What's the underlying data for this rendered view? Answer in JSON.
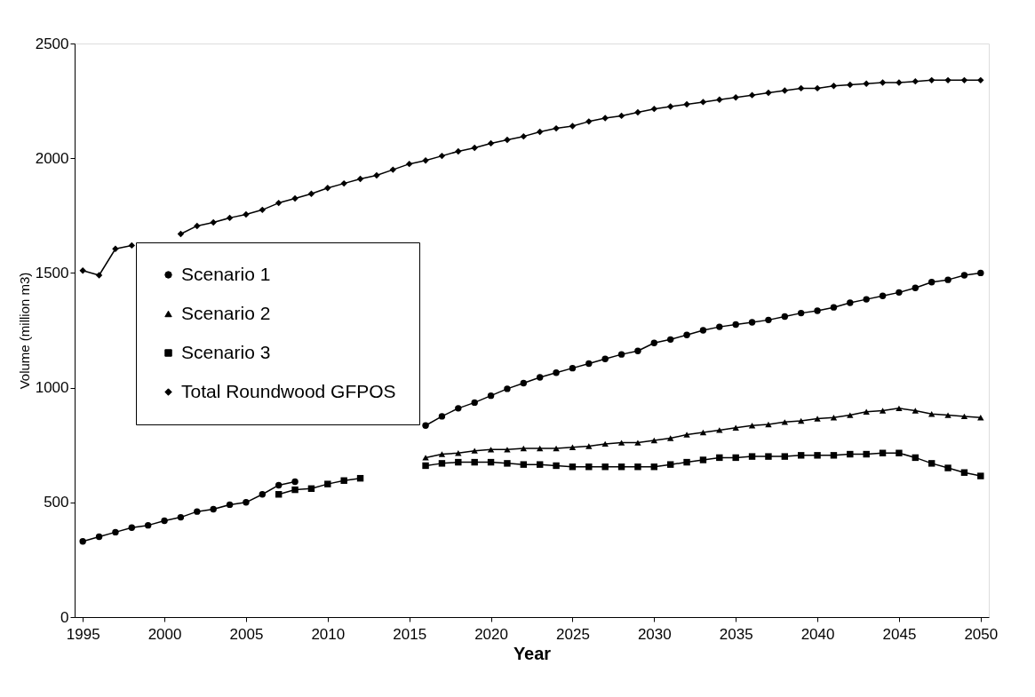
{
  "chart_data": {
    "type": "line",
    "xlabel": "Year",
    "ylabel": "Volume (million m3)",
    "x": [
      1995,
      1996,
      1997,
      1998,
      1999,
      2000,
      2001,
      2002,
      2003,
      2004,
      2005,
      2006,
      2007,
      2008,
      2009,
      2010,
      2011,
      2012,
      2013,
      2014,
      2015,
      2016,
      2017,
      2018,
      2019,
      2020,
      2021,
      2022,
      2023,
      2024,
      2025,
      2026,
      2027,
      2028,
      2029,
      2030,
      2031,
      2032,
      2033,
      2034,
      2035,
      2036,
      2037,
      2038,
      2039,
      2040,
      2041,
      2042,
      2043,
      2044,
      2045,
      2046,
      2047,
      2048,
      2049,
      2050
    ],
    "series": [
      {
        "name": "Scenario 1",
        "color": "#000000",
        "marker": "circle",
        "values": [
          330,
          350,
          370,
          390,
          400,
          420,
          435,
          460,
          470,
          490,
          500,
          535,
          575,
          590,
          null,
          null,
          null,
          null,
          null,
          null,
          null,
          835,
          875,
          910,
          935,
          965,
          995,
          1020,
          1045,
          1065,
          1085,
          1105,
          1125,
          1145,
          1160,
          1195,
          1210,
          1230,
          1250,
          1265,
          1275,
          1285,
          1295,
          1310,
          1325,
          1335,
          1350,
          1370,
          1385,
          1400,
          1415,
          1435,
          1460,
          1470,
          1490,
          1500
        ]
      },
      {
        "name": "Scenario 2",
        "color": "#000000",
        "marker": "triangle",
        "values": [
          null,
          null,
          null,
          null,
          null,
          null,
          null,
          null,
          null,
          null,
          null,
          null,
          null,
          null,
          null,
          null,
          null,
          null,
          null,
          null,
          null,
          695,
          710,
          715,
          725,
          730,
          730,
          735,
          735,
          735,
          740,
          745,
          755,
          760,
          760,
          770,
          780,
          795,
          805,
          815,
          825,
          835,
          840,
          850,
          855,
          865,
          870,
          880,
          895,
          900,
          910,
          900,
          885,
          880,
          875,
          870
        ]
      },
      {
        "name": "Scenario 3",
        "color": "#000000",
        "marker": "square",
        "values": [
          null,
          null,
          null,
          null,
          null,
          null,
          null,
          null,
          null,
          null,
          null,
          null,
          535,
          555,
          560,
          580,
          595,
          605,
          null,
          null,
          null,
          660,
          670,
          675,
          675,
          675,
          670,
          665,
          665,
          660,
          655,
          655,
          655,
          655,
          655,
          655,
          665,
          675,
          685,
          695,
          695,
          700,
          700,
          700,
          705,
          705,
          705,
          710,
          710,
          715,
          715,
          695,
          670,
          650,
          630,
          615
        ]
      },
      {
        "name": "Total Roundwood GFPOS",
        "color": "#000000",
        "marker": "diamond",
        "values": [
          1510,
          1490,
          1605,
          1620,
          null,
          null,
          1670,
          1705,
          1720,
          1740,
          1755,
          1775,
          1805,
          1825,
          1845,
          1870,
          1890,
          1910,
          1925,
          1950,
          1975,
          1990,
          2010,
          2030,
          2045,
          2065,
          2080,
          2095,
          2115,
          2130,
          2140,
          2160,
          2175,
          2185,
          2200,
          2215,
          2225,
          2235,
          2245,
          2255,
          2265,
          2275,
          2285,
          2295,
          2305,
          2305,
          2315,
          2320,
          2325,
          2330,
          2330,
          2335,
          2340,
          2340,
          2340,
          2340
        ]
      }
    ],
    "xlim": [
      1994.5,
      2050.5
    ],
    "xticks": [
      1995,
      2000,
      2005,
      2010,
      2015,
      2020,
      2025,
      2030,
      2035,
      2040,
      2045,
      2050
    ],
    "ylim": [
      0,
      2500
    ],
    "yticks": [
      0,
      500,
      1000,
      1500,
      2000,
      2500
    ],
    "grid": false,
    "legend": "left",
    "line_style": "solid"
  }
}
